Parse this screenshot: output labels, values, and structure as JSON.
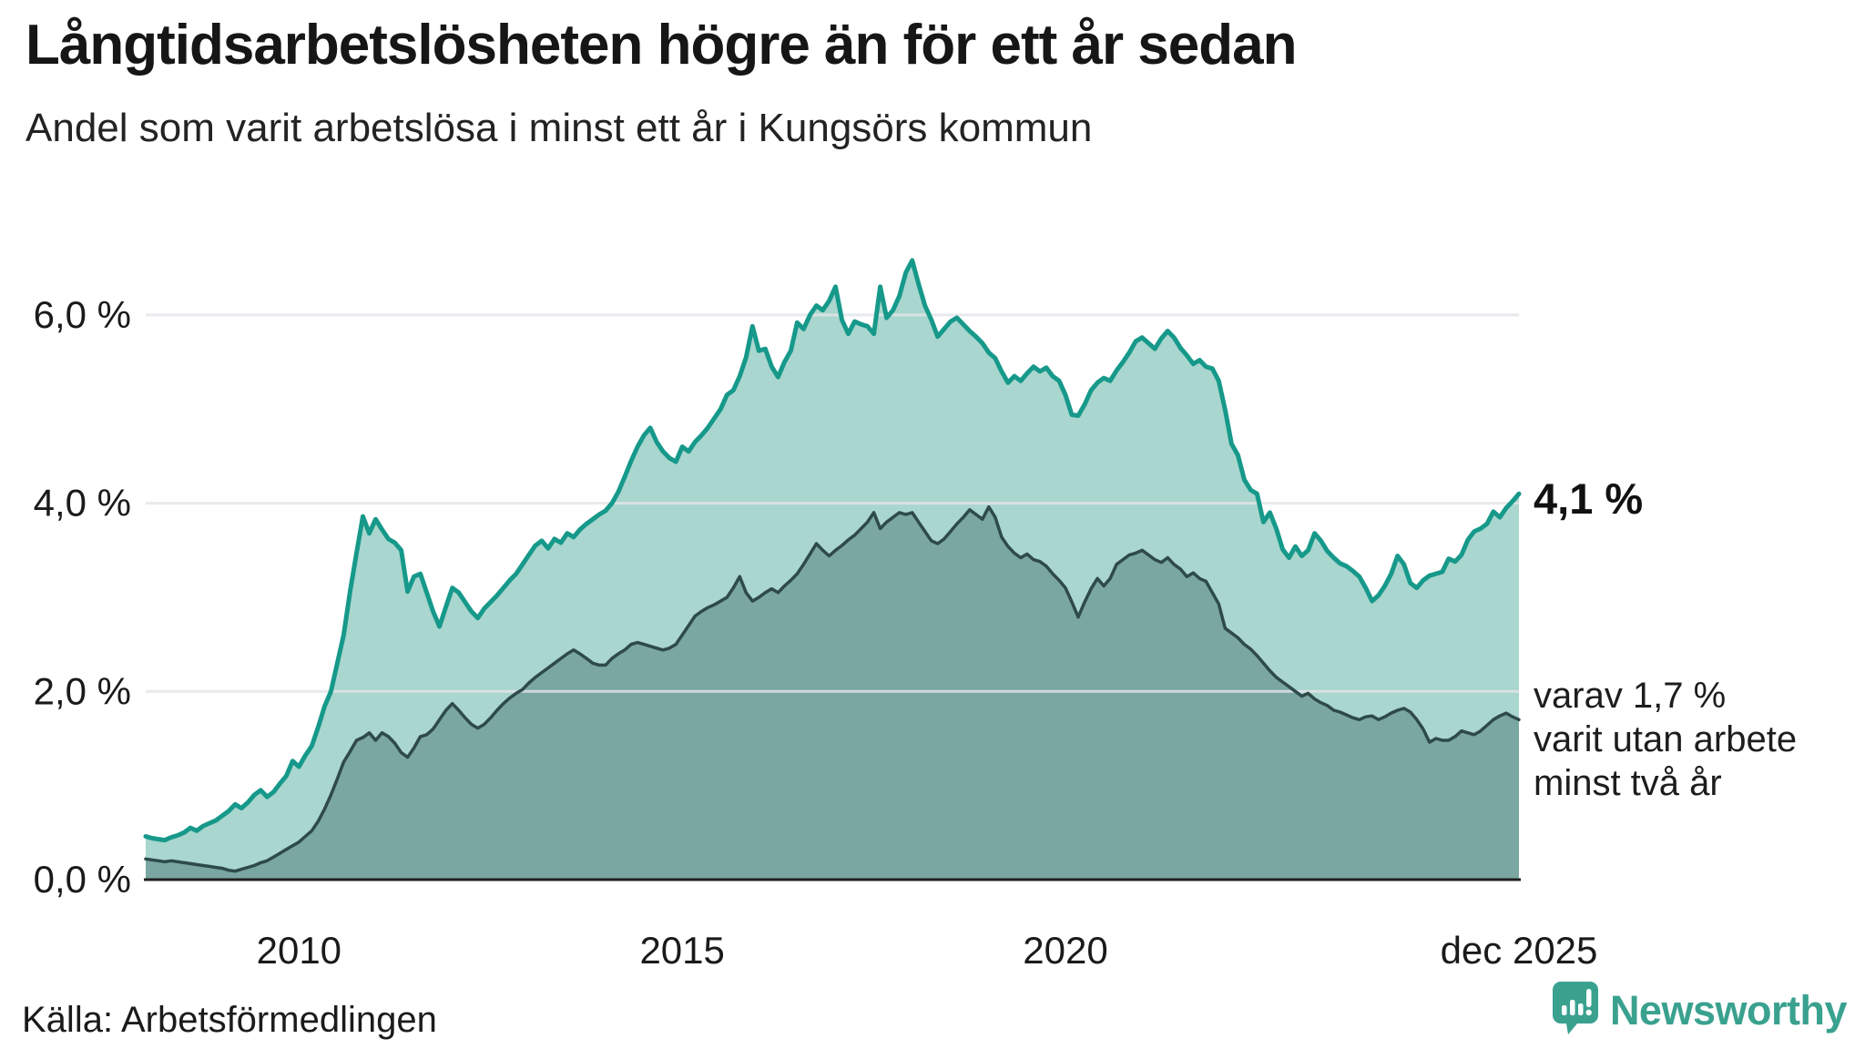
{
  "header": {
    "title": "Långtidsarbetslösheten högre än för ett år sedan",
    "subtitle": "Andel som varit arbetslösa i minst ett år i Kungsörs kommun"
  },
  "annotations": {
    "latest_value_label": "4,1 %",
    "secondary_line1": "varav 1,7 %",
    "secondary_line2": "varit utan arbete",
    "secondary_line3": "minst två år"
  },
  "source": {
    "label": "Källa: Arbetsförmedlingen"
  },
  "logo": {
    "name": "Newsworthy",
    "icon": "newsworthy-speech-bubble-bar-chart-icon"
  },
  "colors": {
    "accent_teal": "#16998a",
    "fill_light": "#a9d6ce",
    "fill_dark": "#7aa7a1",
    "stroke_dark": "#2e4a4a",
    "gridline": "#e3e4e8",
    "baseline": "#1f1f1f",
    "text": "#1a1a1a",
    "logo_teal": "#3aa18f"
  },
  "chart_data": {
    "type": "area",
    "title": "Långtidsarbetslösheten högre än för ett år sedan",
    "unit": "%",
    "frequency": "monthly",
    "x_start": "2008-01",
    "x_end": "2025-12",
    "xlabel": "",
    "ylabel": "",
    "ylim": [
      0,
      7.3
    ],
    "grid": "horizontal",
    "legend_position": "none",
    "y_ticks": [
      {
        "value": 0,
        "label": "0,0 %"
      },
      {
        "value": 2,
        "label": "2,0 %"
      },
      {
        "value": 4,
        "label": "4,0 %"
      },
      {
        "value": 6,
        "label": "6,0 %"
      }
    ],
    "x_ticks": [
      {
        "month_index": 24,
        "label": "2010"
      },
      {
        "month_index": 84,
        "label": "2015"
      },
      {
        "month_index": 144,
        "label": "2020"
      },
      {
        "month_index": 215,
        "label": "dec 2025"
      }
    ],
    "series": [
      {
        "name": "Arbetslösa minst ett år",
        "end_value": 4.1,
        "end_label": "4,1 %",
        "line_color": "#16998a",
        "fill_color": "#a9d6ce",
        "line_width": 5,
        "values": [
          0.46,
          0.44,
          0.43,
          0.42,
          0.45,
          0.47,
          0.5,
          0.55,
          0.52,
          0.57,
          0.6,
          0.63,
          0.68,
          0.73,
          0.8,
          0.76,
          0.82,
          0.9,
          0.95,
          0.88,
          0.93,
          1.02,
          1.1,
          1.26,
          1.2,
          1.32,
          1.42,
          1.62,
          1.84,
          2.0,
          2.3,
          2.6,
          3.06,
          3.47,
          3.86,
          3.68,
          3.83,
          3.72,
          3.62,
          3.58,
          3.5,
          3.06,
          3.22,
          3.25,
          3.05,
          2.85,
          2.69,
          2.9,
          3.1,
          3.05,
          2.95,
          2.85,
          2.78,
          2.88,
          2.95,
          3.02,
          3.1,
          3.18,
          3.25,
          3.35,
          3.45,
          3.55,
          3.6,
          3.52,
          3.62,
          3.58,
          3.68,
          3.64,
          3.72,
          3.78,
          3.83,
          3.88,
          3.92,
          4.0,
          4.12,
          4.28,
          4.45,
          4.6,
          4.72,
          4.8,
          4.65,
          4.55,
          4.48,
          4.44,
          4.6,
          4.55,
          4.65,
          4.72,
          4.8,
          4.9,
          5.0,
          5.15,
          5.2,
          5.35,
          5.55,
          5.88,
          5.62,
          5.64,
          5.45,
          5.34,
          5.5,
          5.62,
          5.92,
          5.85,
          6.0,
          6.1,
          6.05,
          6.15,
          6.3,
          5.95,
          5.8,
          5.93,
          5.9,
          5.88,
          5.8,
          6.3,
          5.97,
          6.05,
          6.2,
          6.45,
          6.58,
          6.33,
          6.1,
          5.95,
          5.77,
          5.85,
          5.93,
          5.97,
          5.9,
          5.83,
          5.77,
          5.7,
          5.6,
          5.54,
          5.4,
          5.28,
          5.35,
          5.3,
          5.38,
          5.45,
          5.4,
          5.44,
          5.35,
          5.3,
          5.15,
          4.94,
          4.93,
          5.05,
          5.2,
          5.28,
          5.33,
          5.3,
          5.41,
          5.5,
          5.6,
          5.72,
          5.76,
          5.7,
          5.64,
          5.75,
          5.83,
          5.76,
          5.65,
          5.57,
          5.48,
          5.52,
          5.45,
          5.43,
          5.3,
          4.99,
          4.63,
          4.51,
          4.25,
          4.14,
          4.1,
          3.8,
          3.9,
          3.73,
          3.51,
          3.42,
          3.54,
          3.44,
          3.5,
          3.68,
          3.6,
          3.49,
          3.42,
          3.36,
          3.33,
          3.28,
          3.22,
          3.1,
          2.96,
          3.02,
          3.12,
          3.25,
          3.44,
          3.35,
          3.15,
          3.1,
          3.18,
          3.23,
          3.25,
          3.27,
          3.41,
          3.38,
          3.45,
          3.61,
          3.7,
          3.73,
          3.78,
          3.91,
          3.85,
          3.95,
          4.02,
          4.1
        ]
      },
      {
        "name": "Arbetslösa minst två år",
        "end_value": 1.7,
        "end_label": "varav 1,7 % varit utan arbete minst två år",
        "line_color": "#2e4a4a",
        "fill_color": "#7aa7a1",
        "line_width": 3.5,
        "values": [
          0.22,
          0.21,
          0.2,
          0.19,
          0.2,
          0.19,
          0.18,
          0.17,
          0.16,
          0.15,
          0.14,
          0.13,
          0.12,
          0.1,
          0.09,
          0.11,
          0.13,
          0.15,
          0.18,
          0.2,
          0.24,
          0.28,
          0.32,
          0.36,
          0.4,
          0.46,
          0.52,
          0.62,
          0.75,
          0.9,
          1.07,
          1.25,
          1.36,
          1.48,
          1.51,
          1.56,
          1.48,
          1.56,
          1.52,
          1.45,
          1.35,
          1.3,
          1.4,
          1.52,
          1.54,
          1.6,
          1.7,
          1.8,
          1.87,
          1.8,
          1.72,
          1.65,
          1.61,
          1.65,
          1.72,
          1.8,
          1.87,
          1.93,
          1.98,
          2.02,
          2.09,
          2.15,
          2.2,
          2.25,
          2.3,
          2.35,
          2.4,
          2.44,
          2.4,
          2.35,
          2.3,
          2.28,
          2.28,
          2.35,
          2.4,
          2.44,
          2.5,
          2.52,
          2.5,
          2.48,
          2.46,
          2.44,
          2.46,
          2.5,
          2.6,
          2.7,
          2.8,
          2.85,
          2.89,
          2.92,
          2.96,
          3.0,
          3.1,
          3.22,
          3.05,
          2.96,
          3.0,
          3.05,
          3.09,
          3.05,
          3.12,
          3.18,
          3.25,
          3.35,
          3.46,
          3.57,
          3.5,
          3.44,
          3.5,
          3.55,
          3.61,
          3.66,
          3.73,
          3.8,
          3.9,
          3.73,
          3.8,
          3.85,
          3.9,
          3.88,
          3.9,
          3.8,
          3.7,
          3.6,
          3.57,
          3.62,
          3.7,
          3.78,
          3.85,
          3.93,
          3.88,
          3.83,
          3.96,
          3.85,
          3.64,
          3.54,
          3.47,
          3.42,
          3.46,
          3.4,
          3.38,
          3.33,
          3.25,
          3.18,
          3.1,
          2.95,
          2.79,
          2.95,
          3.09,
          3.2,
          3.12,
          3.2,
          3.35,
          3.4,
          3.45,
          3.47,
          3.5,
          3.45,
          3.4,
          3.37,
          3.42,
          3.35,
          3.3,
          3.22,
          3.26,
          3.2,
          3.17,
          3.05,
          2.93,
          2.67,
          2.62,
          2.57,
          2.5,
          2.45,
          2.38,
          2.3,
          2.22,
          2.15,
          2.1,
          2.05,
          2.0,
          1.95,
          1.98,
          1.92,
          1.88,
          1.85,
          1.8,
          1.78,
          1.75,
          1.72,
          1.7,
          1.73,
          1.74,
          1.7,
          1.73,
          1.77,
          1.8,
          1.82,
          1.78,
          1.7,
          1.6,
          1.46,
          1.5,
          1.48,
          1.48,
          1.52,
          1.58,
          1.56,
          1.54,
          1.58,
          1.64,
          1.7,
          1.74,
          1.77,
          1.73,
          1.7
        ]
      }
    ]
  }
}
